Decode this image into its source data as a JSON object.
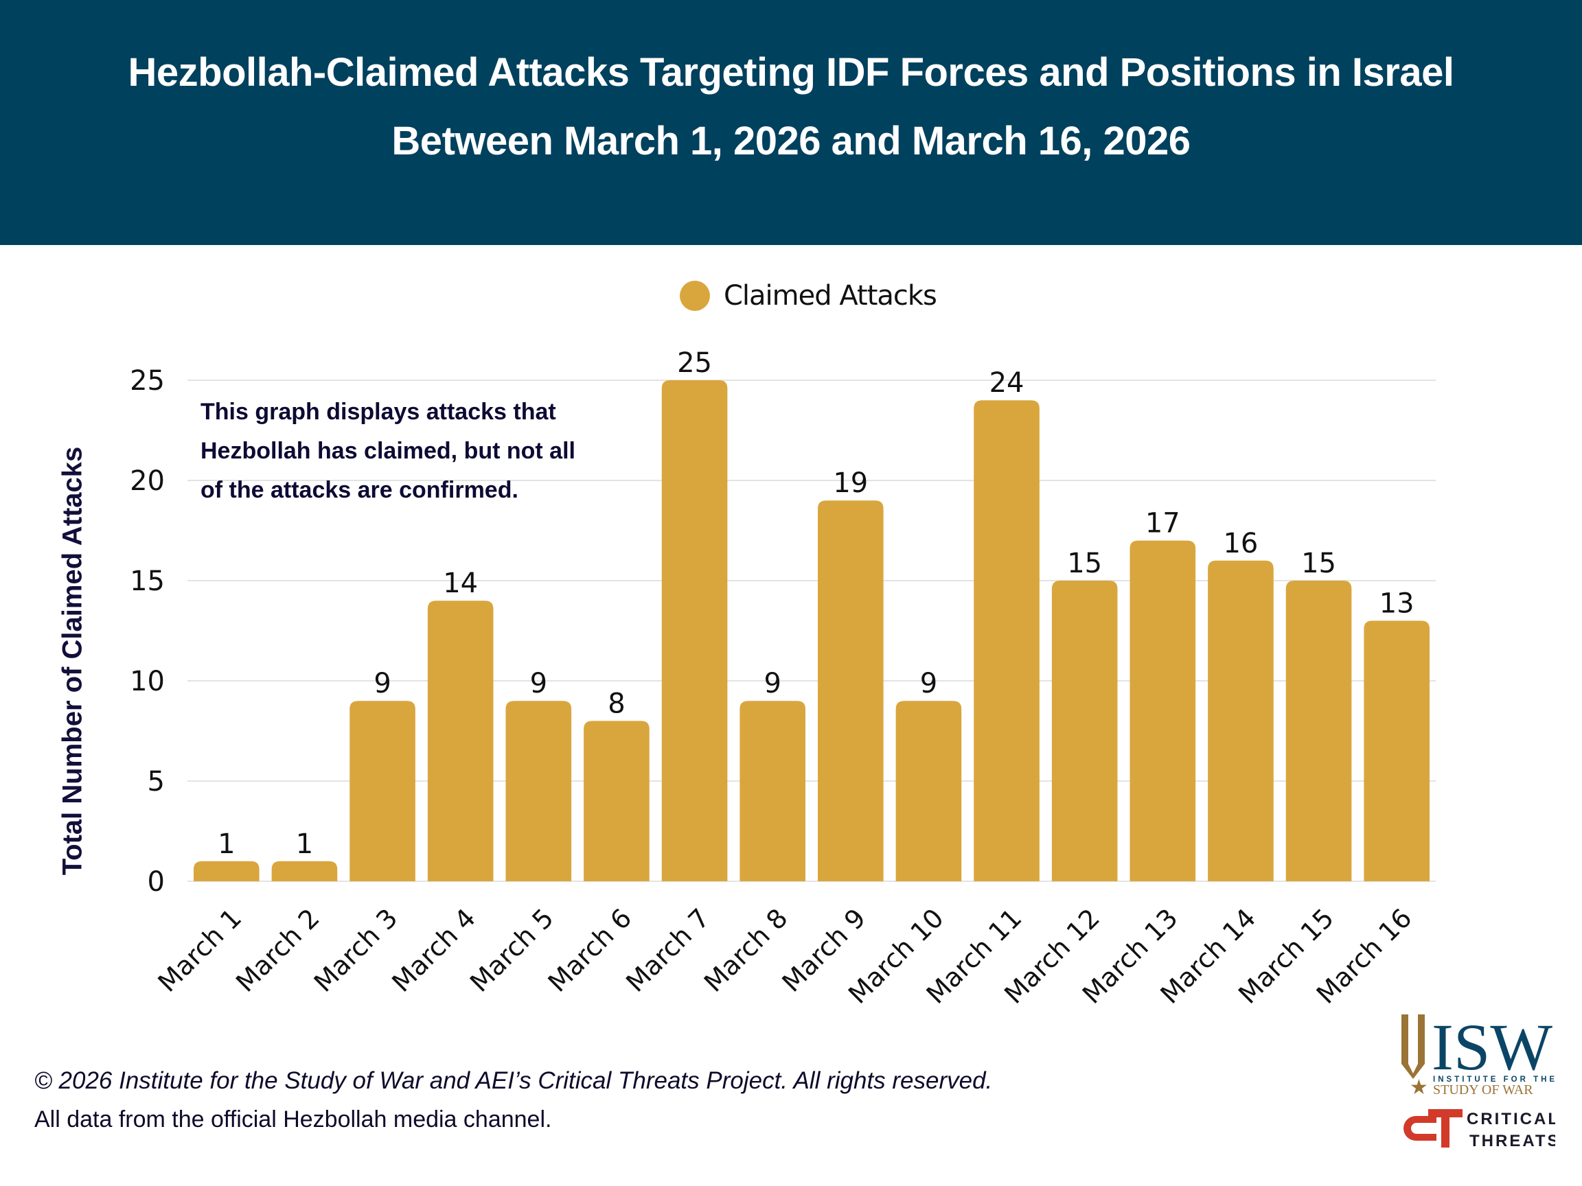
{
  "header": {
    "title_line1": "Hezbollah-Claimed Attacks Targeting IDF Forces and Positions in Israel",
    "title_line2": "Between March 1, 2026 and March 16, 2026",
    "background_color": "#00415e"
  },
  "note": {
    "lines": [
      "This graph displays attacks that",
      "Hezbollah has claimed, but not all",
      "of the attacks are confirmed."
    ]
  },
  "footer": {
    "copyright": "© 2026 Institute for the Study of War and AEI’s Critical Threats Project. All rights reserved.",
    "source": "All data from the official Hezbollah media channel."
  },
  "logos": {
    "isw": {
      "letters": "ISW",
      "line1": "INSTITUTE FOR THE",
      "line2": "STUDY OF WAR"
    },
    "ct": {
      "mark": "CT",
      "line1": "CRITICAL",
      "line2": "THREATS"
    }
  },
  "chart_data": {
    "type": "bar",
    "title": "Hezbollah-Claimed Attacks Targeting IDF Forces and Positions in Israel Between March 1, 2026 and March 16, 2026",
    "xlabel": "",
    "ylabel": "Total Number of Claimed Attacks",
    "categories": [
      "March 1",
      "March 2",
      "March 3",
      "March 4",
      "March 5",
      "March 6",
      "March 7",
      "March 8",
      "March 9",
      "March 10",
      "March 11",
      "March 12",
      "March 13",
      "March 14",
      "March 15",
      "March 16"
    ],
    "series": [
      {
        "name": "Claimed Attacks",
        "color": "#d9a63e",
        "values": [
          1,
          1,
          9,
          14,
          9,
          8,
          25,
          9,
          19,
          9,
          24,
          15,
          17,
          16,
          15,
          13
        ]
      }
    ],
    "ylim": [
      0,
      25
    ],
    "yticks": [
      0,
      5,
      10,
      15,
      20,
      25
    ],
    "grid": true,
    "legend": "top-center",
    "data_labels": true
  }
}
